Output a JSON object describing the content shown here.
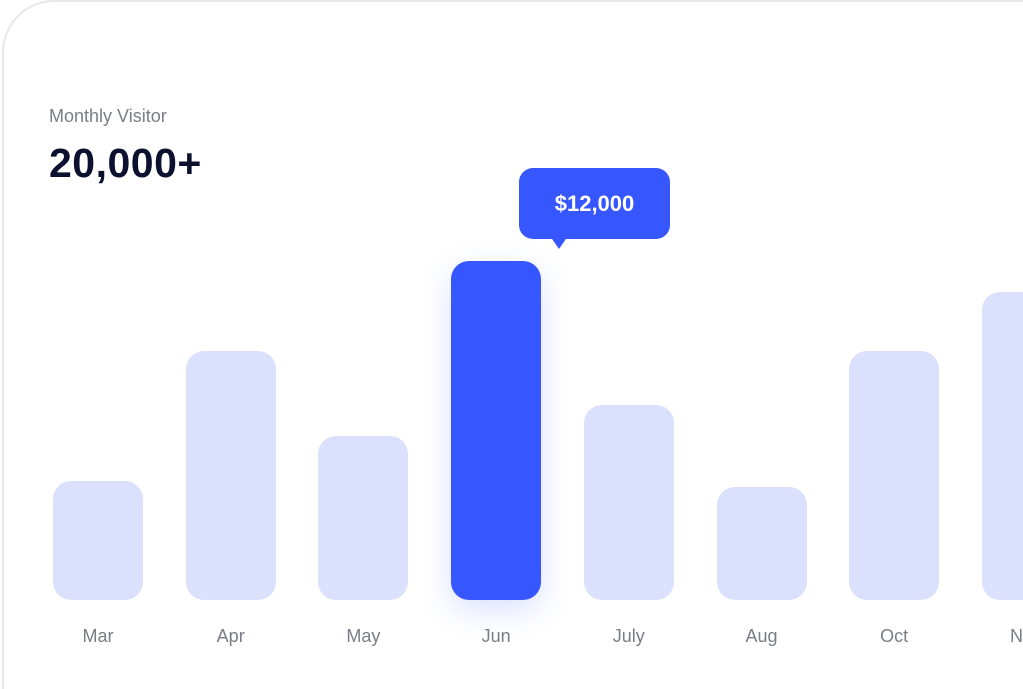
{
  "card": {
    "subtitle": "Monthly Visitor",
    "headline": "20,000+"
  },
  "chart_data": {
    "type": "bar",
    "title": "Monthly Visitor",
    "categories": [
      "Mar",
      "Apr",
      "May",
      "Jun",
      "July",
      "Aug",
      "Oct",
      "N"
    ],
    "values": [
      4200,
      8800,
      5800,
      12000,
      6900,
      4000,
      8800,
      10900
    ],
    "highlight_index": 3,
    "tooltip": "$12,000",
    "ylim": [
      0,
      12000
    ],
    "grid": false,
    "colors": {
      "bar": "#dbe0fd",
      "active": "#3656ff"
    }
  }
}
